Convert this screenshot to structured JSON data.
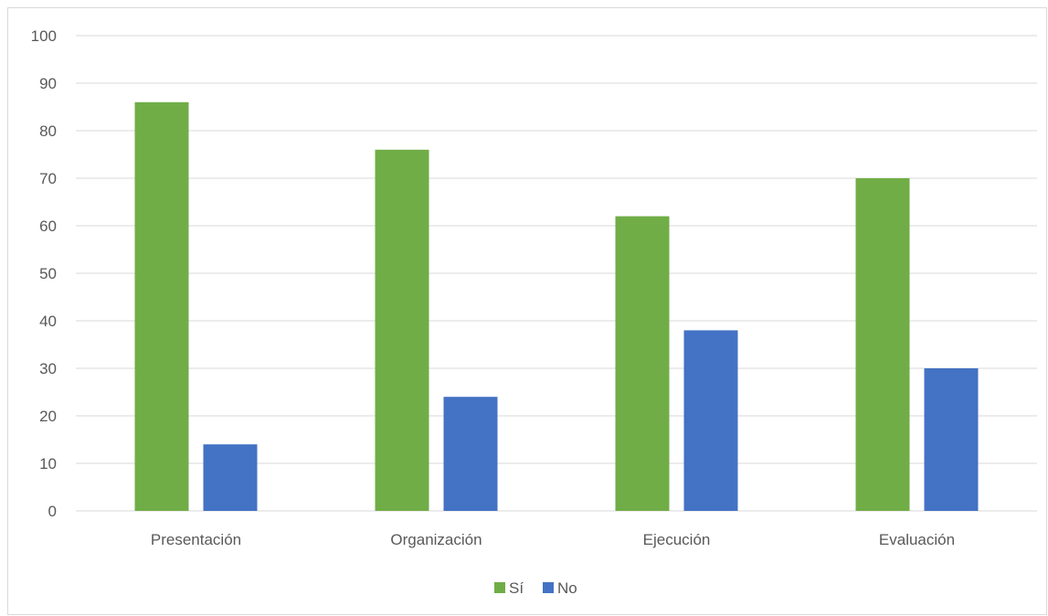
{
  "chart_data": {
    "type": "bar",
    "categories": [
      "Presentación",
      "Organización",
      "Ejecución",
      "Evaluación"
    ],
    "series": [
      {
        "name": "Sí",
        "values": [
          86,
          76,
          62,
          70
        ],
        "color": "#70ad47"
      },
      {
        "name": "No",
        "values": [
          14,
          24,
          38,
          30
        ],
        "color": "#4472c4"
      }
    ],
    "title": "",
    "xlabel": "",
    "ylabel": "",
    "ylim": [
      0,
      100
    ],
    "yticks": [
      0,
      10,
      20,
      30,
      40,
      50,
      60,
      70,
      80,
      90,
      100
    ],
    "grid": true,
    "legend": "bottom-center"
  }
}
